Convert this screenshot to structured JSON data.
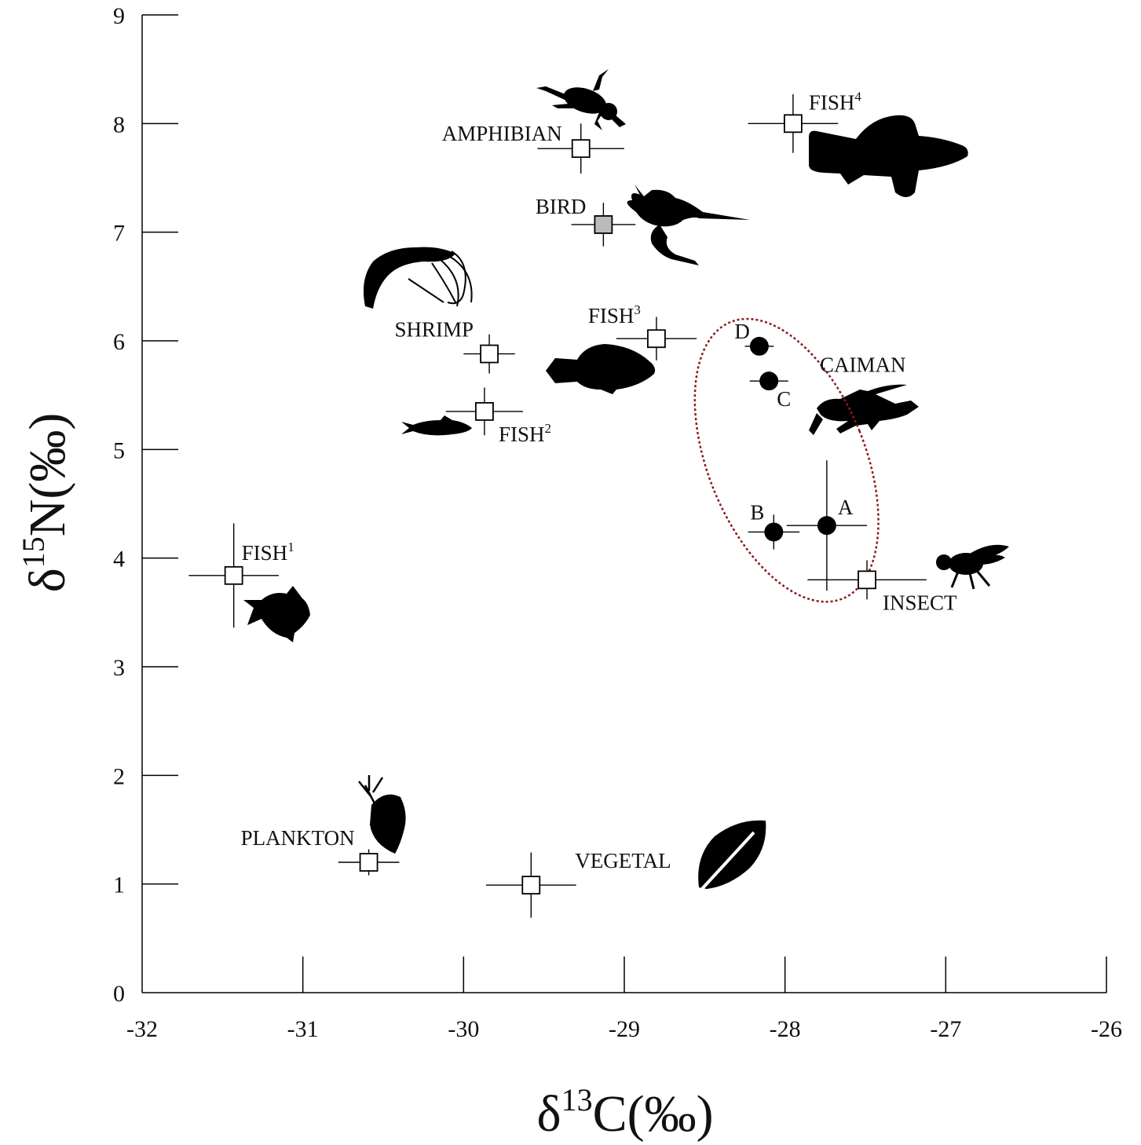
{
  "chart_data": {
    "type": "scatter",
    "xlabel": {
      "prefix": "δ",
      "sup": "13",
      "suffix": "C(‰)"
    },
    "ylabel": {
      "prefix": "δ",
      "sup": "15",
      "suffix": "N(‰)"
    },
    "xlim": [
      -32,
      -26
    ],
    "ylim": [
      0,
      9
    ],
    "xticks": [
      "-32",
      "-31",
      "-30",
      "-29",
      "-28",
      "-27",
      "-26"
    ],
    "yticks": [
      "0",
      "1",
      "2",
      "3",
      "4",
      "5",
      "6",
      "7",
      "8",
      "9"
    ],
    "grid": false,
    "sources": [
      {
        "label": "AMPHIBIAN",
        "sup": "",
        "x": -29.27,
        "y": 7.77,
        "xerr": 0.27,
        "yerr": 0.23,
        "fill": "#ffffff",
        "icon": "frog-icon"
      },
      {
        "label": "FISH",
        "sup": "4",
        "x": -27.95,
        "y": 8.0,
        "xerr": 0.28,
        "yerr": 0.27,
        "fill": "#ffffff",
        "icon": "fish4-icon"
      },
      {
        "label": "BIRD",
        "sup": "",
        "x": -29.13,
        "y": 7.07,
        "xerr": 0.2,
        "yerr": 0.2,
        "fill": "#bbbbbb",
        "icon": "heron-icon"
      },
      {
        "label": "SHRIMP",
        "sup": "",
        "x": -29.84,
        "y": 5.88,
        "xerr": 0.16,
        "yerr": 0.18,
        "fill": "#ffffff",
        "icon": "shrimp-icon"
      },
      {
        "label": "FISH",
        "sup": "3",
        "x": -28.8,
        "y": 6.02,
        "xerr": 0.25,
        "yerr": 0.2,
        "fill": "#ffffff",
        "icon": "fish3-icon"
      },
      {
        "label": "FISH",
        "sup": "2",
        "x": -29.87,
        "y": 5.35,
        "xerr": 0.24,
        "yerr": 0.22,
        "fill": "#ffffff",
        "icon": "fish2-icon"
      },
      {
        "label": "FISH",
        "sup": "1",
        "x": -31.43,
        "y": 3.84,
        "xerr": 0.28,
        "yerr": 0.48,
        "fill": "#ffffff",
        "icon": "fish1-icon"
      },
      {
        "label": "INSECT",
        "sup": "",
        "x": -27.49,
        "y": 3.8,
        "xerr": 0.37,
        "yerr": 0.18,
        "fill": "#ffffff",
        "icon": "fly-icon"
      },
      {
        "label": "PLANKTON",
        "sup": "",
        "x": -30.59,
        "y": 1.2,
        "xerr": 0.19,
        "yerr": 0.12,
        "fill": "#ffffff",
        "icon": "daphnia-icon"
      },
      {
        "label": "VEGETAL",
        "sup": "",
        "x": -29.58,
        "y": 0.99,
        "xerr": 0.28,
        "yerr": 0.3,
        "fill": "#ffffff",
        "icon": "leaf-icon"
      }
    ],
    "caiman": {
      "label": "CAIMAN",
      "icon": "caiman-icon",
      "ellipse_color": "#8b1a1a",
      "points": [
        {
          "label": "A",
          "x": -27.74,
          "y": 4.3,
          "xerr": 0.25,
          "yerr": 0.6
        },
        {
          "label": "B",
          "x": -28.07,
          "y": 4.24,
          "xerr": 0.16,
          "yerr": 0.16
        },
        {
          "label": "C",
          "x": -28.1,
          "y": 5.63,
          "xerr": 0.12,
          "yerr": 0.06
        },
        {
          "label": "D",
          "x": -28.16,
          "y": 5.95,
          "xerr": 0.09,
          "yerr": 0.08
        }
      ]
    }
  }
}
